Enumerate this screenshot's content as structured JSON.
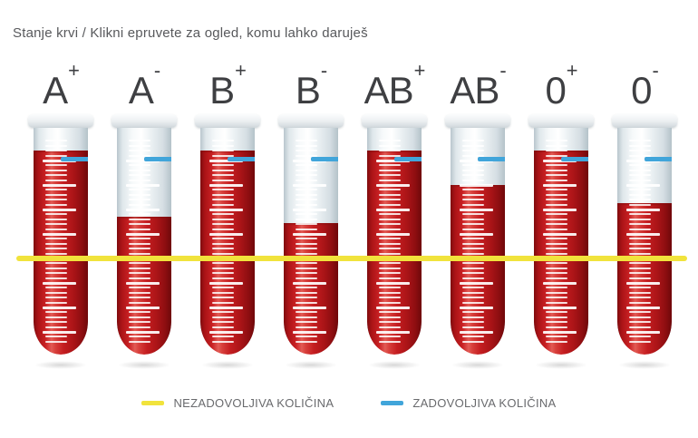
{
  "title": "Stanje krvi / Klikni epruvete za ogled, komu lahko daruješ",
  "tubes": [
    {
      "group": "A",
      "sign": "+",
      "fill_pct": 90
    },
    {
      "group": "A",
      "sign": "-",
      "fill_pct": 61
    },
    {
      "group": "B",
      "sign": "+",
      "fill_pct": 90
    },
    {
      "group": "B",
      "sign": "-",
      "fill_pct": 58
    },
    {
      "group": "AB",
      "sign": "+",
      "fill_pct": 90
    },
    {
      "group": "AB",
      "sign": "-",
      "fill_pct": 75
    },
    {
      "group": "0",
      "sign": "+",
      "fill_pct": 90
    },
    {
      "group": "0",
      "sign": "-",
      "fill_pct": 67
    }
  ],
  "legend": {
    "items": [
      {
        "key": "unsatisfactory",
        "label": "NEZADOVOLJIVA KOLIČINA",
        "color": "#f1e33c"
      },
      {
        "key": "satisfactory",
        "label": "ZADOVOLJIVA KOLIČINA",
        "color": "#41a5da"
      }
    ]
  },
  "colors": {
    "blood": "#c41d20",
    "glass": "#eef3f5",
    "text": "#58595c"
  }
}
